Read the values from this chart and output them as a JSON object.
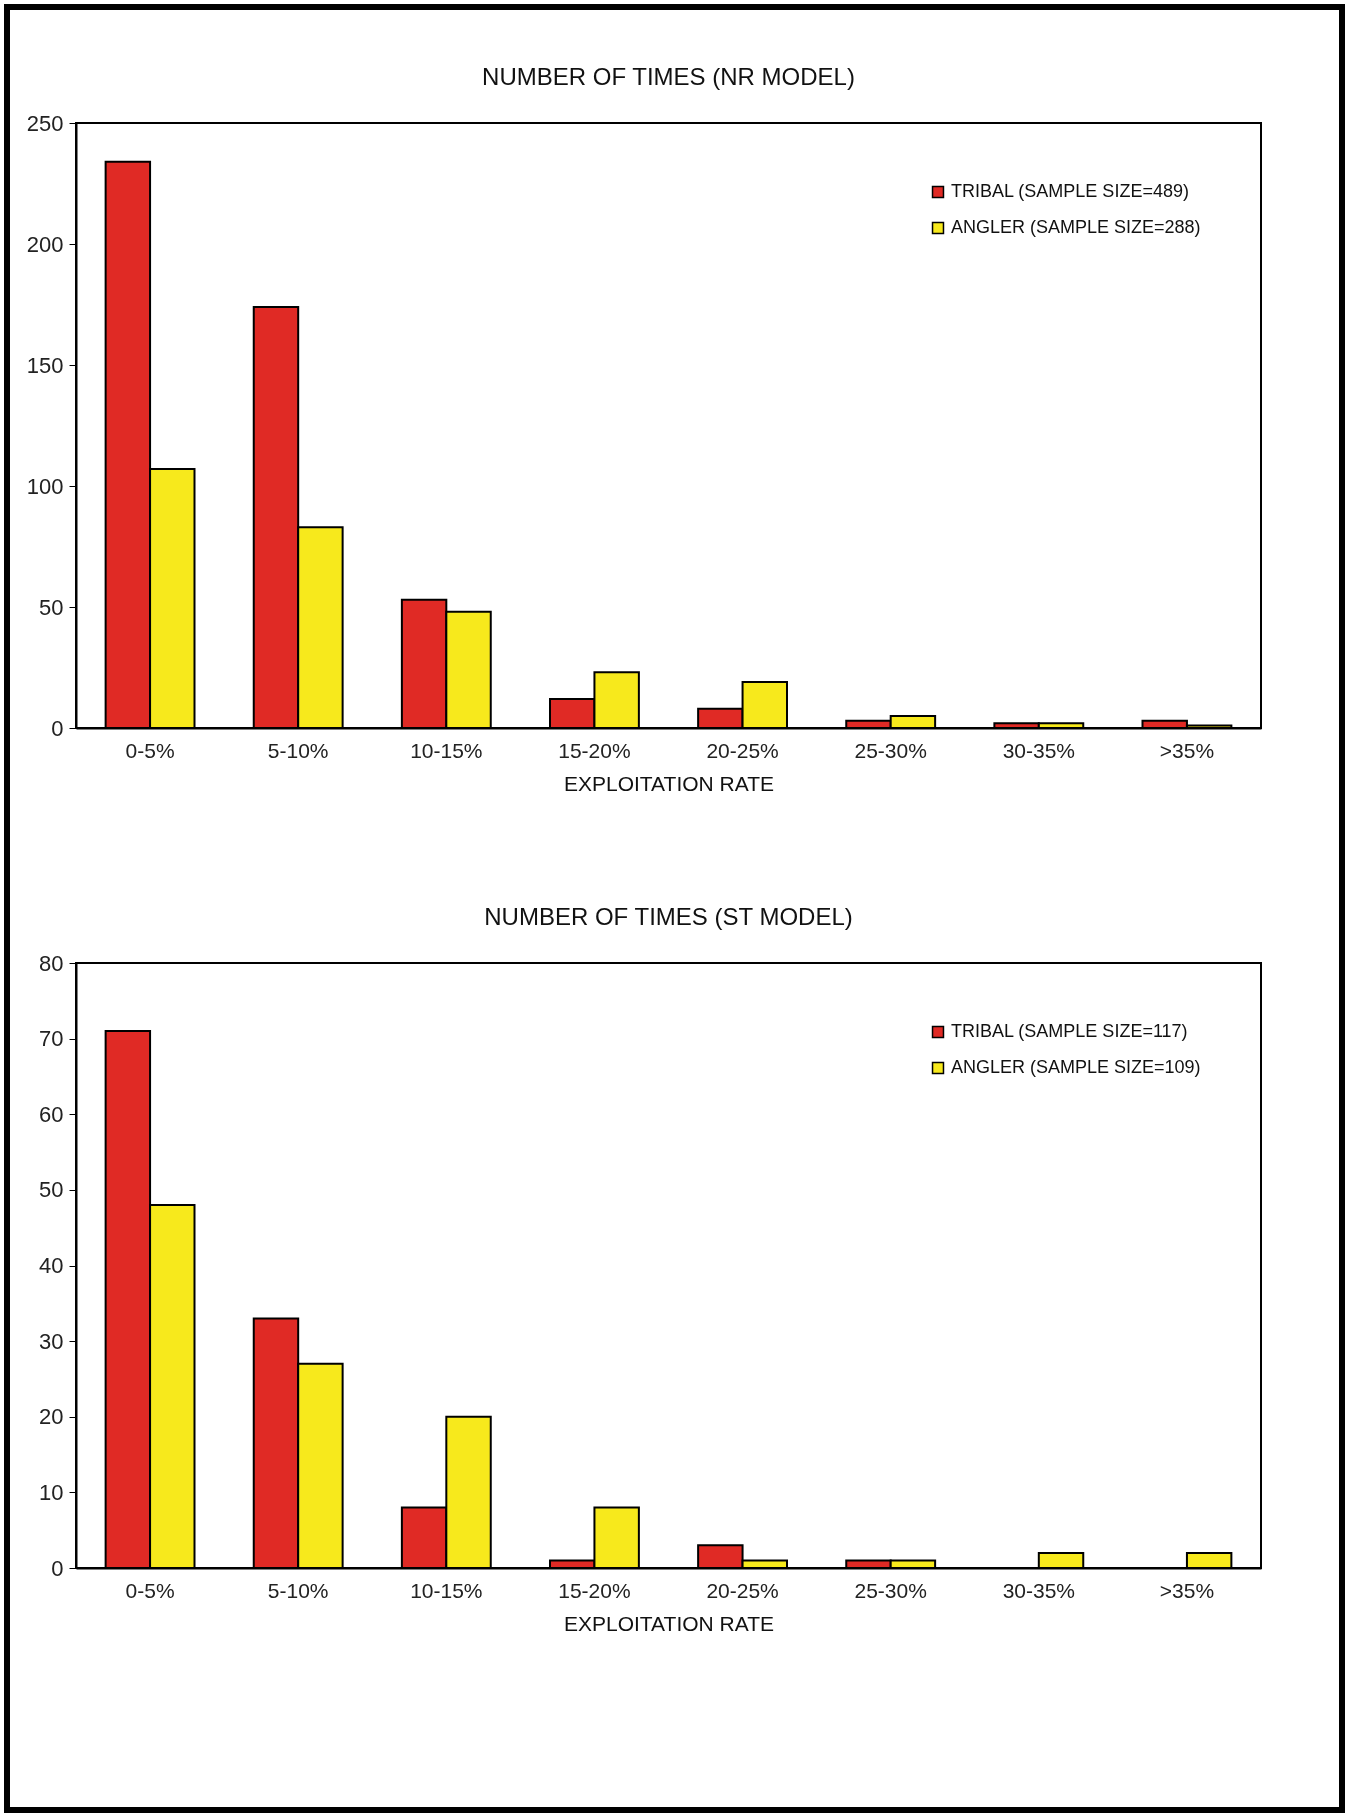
{
  "chart_data": [
    {
      "type": "bar",
      "title": "NUMBER OF TIMES (NR MODEL)",
      "xlabel": "EXPLOITATION RATE",
      "categories": [
        "0-5%",
        "5-10%",
        "10-15%",
        "15-20%",
        "20-25%",
        "25-30%",
        "30-35%",
        ">35%"
      ],
      "series": [
        {
          "name": "TRIBAL (SAMPLE SIZE=489)",
          "color": "#e02a25",
          "values": [
            234,
            174,
            53,
            12,
            8,
            3,
            2,
            3
          ]
        },
        {
          "name": "ANGLER (SAMPLE SIZE=288)",
          "color": "#f7e91c",
          "values": [
            107,
            83,
            48,
            23,
            19,
            5,
            2,
            1
          ]
        }
      ],
      "ylim": [
        0,
        250
      ],
      "yticks": [
        0,
        50,
        100,
        150,
        200,
        250
      ],
      "grid": false,
      "legend": "top right"
    },
    {
      "type": "bar",
      "title": "NUMBER OF TIMES (ST MODEL)",
      "xlabel": "EXPLOITATION RATE",
      "categories": [
        "0-5%",
        "5-10%",
        "10-15%",
        "15-20%",
        "20-25%",
        "25-30%",
        "30-35%",
        ">35%"
      ],
      "series": [
        {
          "name": "TRIBAL (SAMPLE SIZE=117)",
          "color": "#e02a25",
          "values": [
            71,
            33,
            8,
            1,
            3,
            1,
            0,
            0
          ]
        },
        {
          "name": "ANGLER (SAMPLE SIZE=109)",
          "color": "#f7e91c",
          "values": [
            48,
            27,
            20,
            8,
            1,
            1,
            2,
            2
          ]
        }
      ],
      "ylim": [
        0,
        80
      ],
      "yticks": [
        0,
        10,
        20,
        30,
        40,
        50,
        60,
        70,
        80
      ],
      "grid": false,
      "legend": "top right"
    }
  ]
}
